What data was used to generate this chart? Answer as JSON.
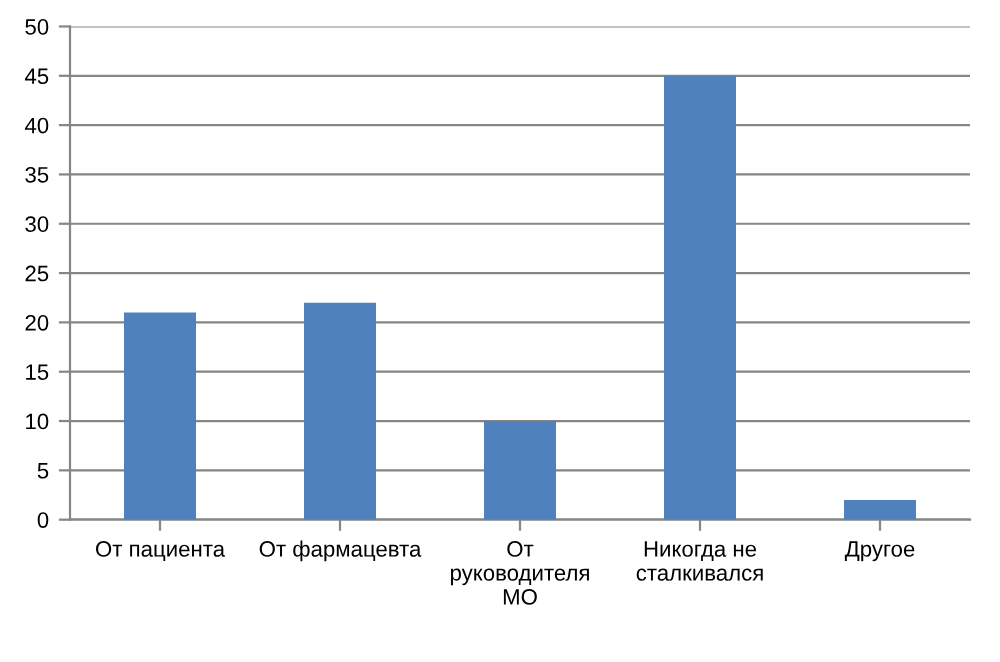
{
  "chart_data": {
    "type": "bar",
    "categories": [
      "От пациента",
      "От фармацевта",
      "От\nруководителя\nМО",
      "Никогда не\nсталкивался",
      "Другое"
    ],
    "values": [
      21,
      22,
      10,
      45,
      2
    ],
    "color": "#4f81bd",
    "ylim": [
      0,
      50
    ],
    "yticks": [
      0,
      5,
      10,
      15,
      20,
      25,
      30,
      35,
      40,
      45,
      50
    ],
    "grid": "y"
  }
}
